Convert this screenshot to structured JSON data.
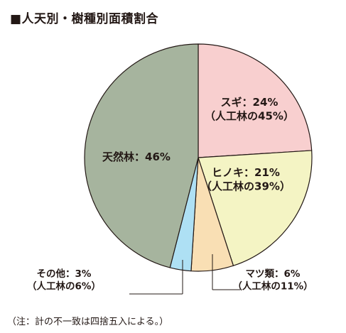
{
  "chart_data": {
    "type": "pie",
    "title": "■人天別・樹種別面積割合",
    "note": "（注：計の不一致は四捨五入による。）",
    "slices": [
      {
        "name": "スギ",
        "value": 24,
        "color": "#f8cfcf",
        "label_lines": [
          "スギ：24%",
          "（人工林の45%）"
        ]
      },
      {
        "name": "ヒノキ",
        "value": 21,
        "color": "#f4f4c4",
        "label_lines": [
          "ヒノキ：21%",
          "（人工林の39%）"
        ]
      },
      {
        "name": "マツ類",
        "value": 6,
        "color": "#f9dfb4",
        "label_lines": [
          "マツ類：6%",
          "（人工林の11%）"
        ]
      },
      {
        "name": "その他",
        "value": 3,
        "color": "#aee0f4",
        "label_lines": [
          "その他：3%",
          "（人工林の6%）"
        ]
      },
      {
        "name": "天然林",
        "value": 46,
        "color": "#a6b49e",
        "label_lines": [
          "天然林：46%"
        ]
      }
    ]
  }
}
